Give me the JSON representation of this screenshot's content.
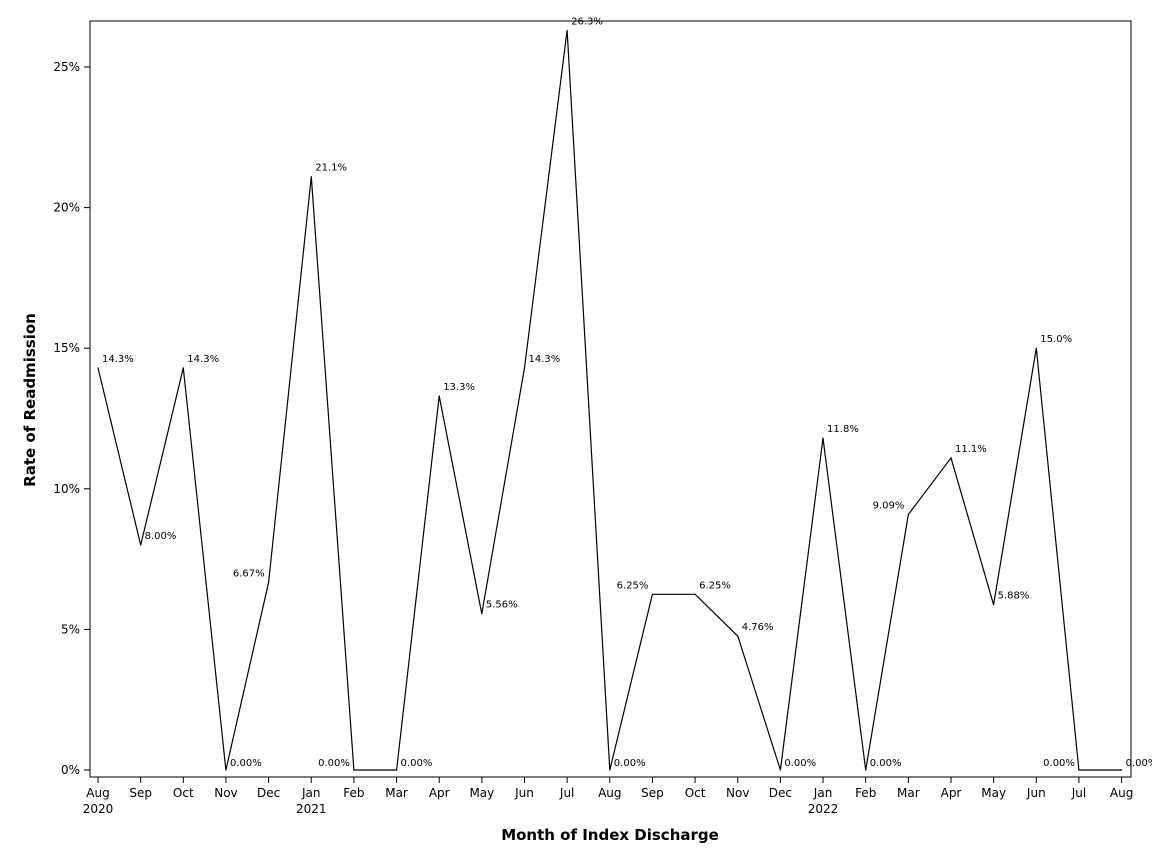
{
  "chart_data": {
    "type": "line",
    "title": "",
    "xlabel": "Month of Index Discharge",
    "ylabel": "Rate of Readmission",
    "ylim": [
      0,
      26.5
    ],
    "yticks": [
      0,
      5,
      10,
      15,
      20,
      25
    ],
    "ytick_labels": [
      "0%",
      "5%",
      "10%",
      "15%",
      "20%",
      "25%"
    ],
    "grid": false,
    "legend": "none",
    "line_color": "#000000",
    "categories": [
      "Aug 2020",
      "Sep 2020",
      "Oct 2020",
      "Nov 2020",
      "Dec 2020",
      "Jan 2021",
      "Feb 2021",
      "Mar 2021",
      "Apr 2021",
      "May 2021",
      "Jun 2021",
      "Jul 2021",
      "Aug 2021",
      "Sep 2021",
      "Oct 2021",
      "Nov 2021",
      "Dec 2021",
      "Jan 2022",
      "Feb 2022",
      "Mar 2022",
      "Apr 2022",
      "May 2022",
      "Jun 2022",
      "Jul 2022",
      "Aug 2022"
    ],
    "xtick_labels": [
      "Aug",
      "Sep",
      "Oct",
      "Nov",
      "Dec",
      "Jan",
      "Feb",
      "Mar",
      "Apr",
      "May",
      "Jun",
      "Jul",
      "Aug",
      "Sep",
      "Oct",
      "Nov",
      "Dec",
      "Jan",
      "Feb",
      "Mar",
      "Apr",
      "May",
      "Jun",
      "Jul",
      "Aug"
    ],
    "xtick_year_labels": {
      "0": "2020",
      "5": "2021",
      "17": "2022"
    },
    "series": [
      {
        "values": [
          14.3,
          8.0,
          14.3,
          0.0,
          6.67,
          21.1,
          0.0,
          0.0,
          13.3,
          5.56,
          14.3,
          26.3,
          0.0,
          6.25,
          6.25,
          4.76,
          0.0,
          11.8,
          0.0,
          9.09,
          11.1,
          5.88,
          15.0,
          0.0,
          0.0
        ],
        "labels": [
          "14.3%",
          "8.00%",
          "14.3%",
          "0.00%",
          "6.67%",
          "21.1%",
          "0.00%",
          "0.00%",
          "13.3%",
          "5.56%",
          "14.3%",
          "26.3%",
          "0.00%",
          "6.25%",
          "6.25%",
          "4.76%",
          "0.00%",
          "11.8%",
          "0.00%",
          "9.09%",
          "11.1%",
          "5.88%",
          "15.0%",
          "0.00%",
          "0.00%"
        ]
      }
    ]
  }
}
